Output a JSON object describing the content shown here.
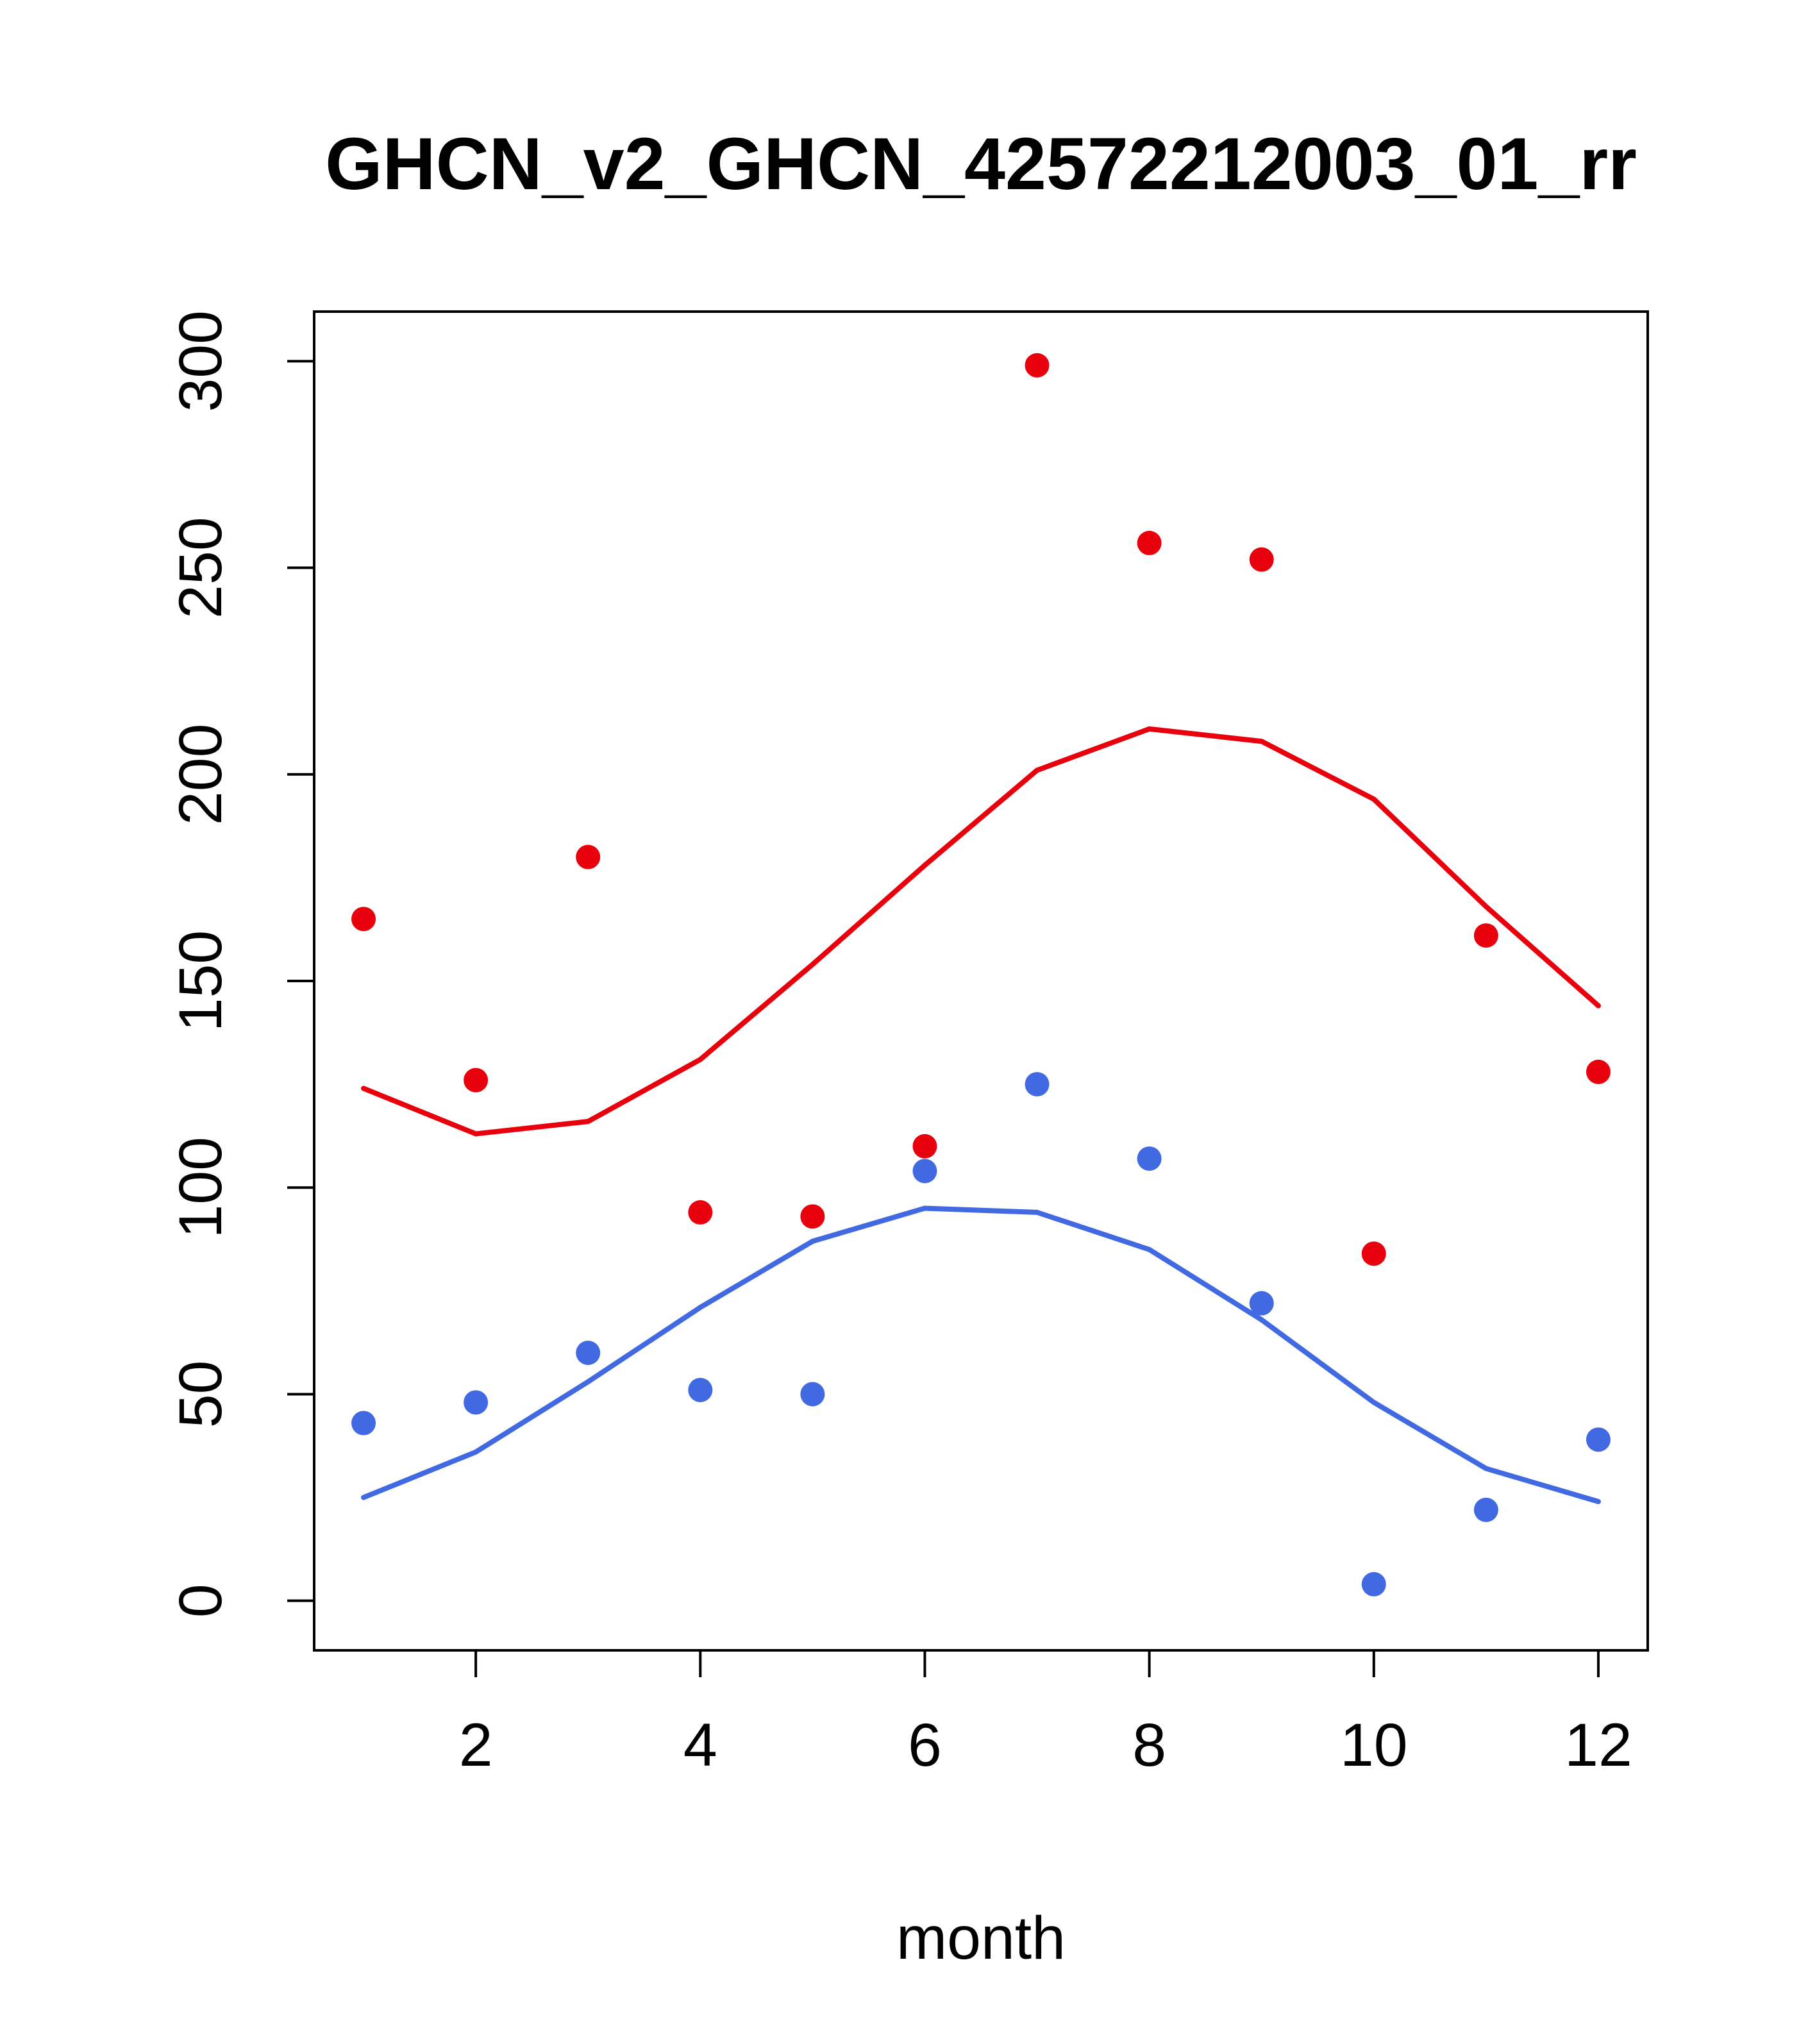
{
  "chart_data": {
    "type": "scatter",
    "title": "GHCN_v2_GHCN_42572212003_01_rr",
    "xlabel": "month",
    "ylabel": "",
    "xlim": [
      1,
      12
    ],
    "ylim": [
      0,
      300
    ],
    "x_ticks": [
      2,
      4,
      6,
      8,
      10,
      12
    ],
    "y_ticks": [
      0,
      50,
      100,
      150,
      200,
      250,
      300
    ],
    "months": [
      1,
      2,
      3,
      4,
      5,
      6,
      7,
      8,
      9,
      10,
      11,
      12
    ],
    "grid": false,
    "legend": "none",
    "colors": {
      "red": "#e8000d",
      "blue": "#4169e1"
    },
    "series": [
      {
        "name": "red-points",
        "type": "points",
        "color": "#e8000d",
        "values": [
          165,
          126,
          180,
          94,
          93,
          110,
          299,
          256,
          252,
          84,
          161,
          128
        ]
      },
      {
        "name": "blue-points",
        "type": "points",
        "color": "#4169e1",
        "values": [
          43,
          48,
          60,
          51,
          50,
          104,
          125,
          107,
          72,
          4,
          22,
          39
        ]
      },
      {
        "name": "red-smooth-line",
        "type": "line",
        "color": "#e8000d",
        "values": [
          124,
          113,
          116,
          131,
          154,
          178,
          201,
          211,
          208,
          194,
          168,
          144
        ]
      },
      {
        "name": "blue-smooth-line",
        "type": "line",
        "color": "#4169e1",
        "values": [
          25,
          36,
          53,
          71,
          87,
          95,
          94,
          85,
          68,
          48,
          32,
          24
        ]
      }
    ]
  }
}
